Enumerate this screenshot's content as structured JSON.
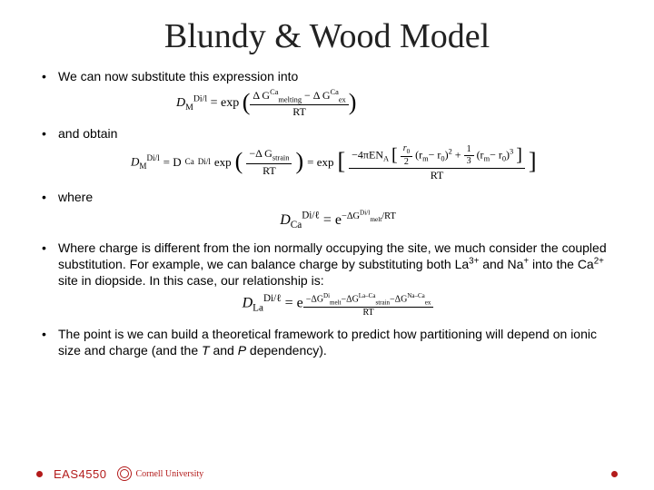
{
  "title": "Blundy & Wood Model",
  "bullets": {
    "b1": "We can now substitute this expression into",
    "b2": "and obtain",
    "b3": "where",
    "b4_part1": "Where charge is different from the ion normally occupying the site, we much consider the coupled substitution. For example, we can balance charge by substituting both La",
    "b4_sup1": "3+",
    "b4_part2": " and Na",
    "b4_sup2": "+",
    "b4_part3": " into the Ca",
    "b4_sup3": "2+",
    "b4_part4": " site in diopside. In this case, our relationship is:",
    "b5_part1": "The point is we can build a theoretical framework to predict how partitioning will depend on ionic size and charge (and the ",
    "b5_T": "T",
    "b5_and": " and ",
    "b5_P": "P",
    "b5_part2": " dependency)."
  },
  "eq1": {
    "lhs_base": "D",
    "lhs_sup": "Di/l",
    "lhs_sub": "M",
    "eq": " = exp",
    "num": "Δ G",
    "num_sup1": "Ca",
    "num_sub1": "melting",
    "num_minus": " − Δ G",
    "num_sup2": "Ca",
    "num_sub2": "ex",
    "den": "RT"
  },
  "eq2": {
    "lhs": "D",
    "lhs_sup": "Di/l",
    "lhs_sub": "M",
    "eq1": " = D",
    "mid_sup": "Di/l",
    "mid_sub": "Ca",
    "exp": " exp",
    "num1": "−Δ G",
    "num1_sub": "strain",
    "den": "RT",
    "eq2": " = exp",
    "num2a": "−4πEN",
    "num2a_sub": "A",
    "brack_r0": "r",
    "brack_r0_sub": "0",
    "brack_2": "2",
    "brack_rm": "(r",
    "brack_rm_sub": "m",
    "brack_minus_r0": "− r",
    "brack_r0_sub2": "0",
    "brack_sq": ")",
    "brack_sup2": "2",
    "brack_plus": " + ",
    "brack_1": "1",
    "brack_3": "3",
    "brack_cube_sup": "3"
  },
  "eq3": {
    "lhs": "D",
    "lhs_sup": "Di/ℓ",
    "lhs_sub": "Ca",
    "eq": " = e",
    "exp_num": "−ΔG",
    "exp_sup": "Di/l",
    "exp_sub": "melt",
    "exp_den": "/RT"
  },
  "eq4": {
    "lhs": "D",
    "lhs_sup": "Di/ℓ",
    "lhs_sub": "La",
    "eq": " = e",
    "num1": "−ΔG",
    "num1_sup": "Di",
    "num1_sub": "melt",
    "minus1": "−ΔG",
    "num2_sup": "La–Ca",
    "num2_sub": "strain",
    "minus2": "−ΔG",
    "num3_sup": "Na–Ca",
    "num3_sub": "ex",
    "den": "RT"
  },
  "footer": {
    "course": "EAS4550",
    "uni": "Cornell University"
  },
  "colors": {
    "accent": "#b31b1b",
    "text": "#000000",
    "bg": "#ffffff"
  }
}
